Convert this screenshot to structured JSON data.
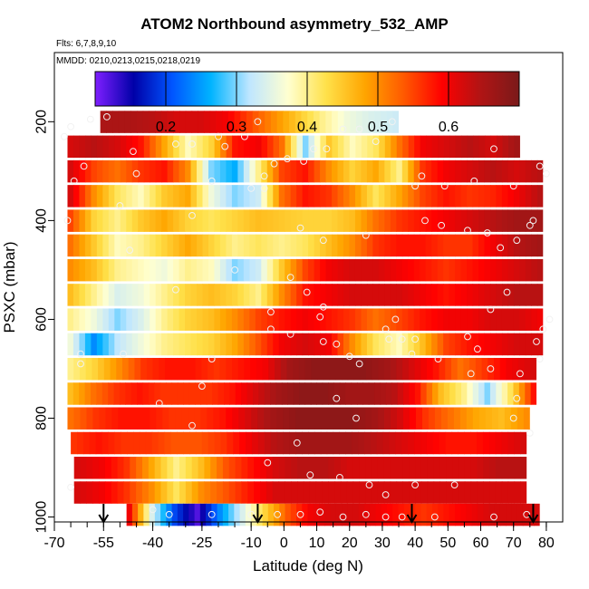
{
  "chart_data": {
    "type": "heatmap",
    "title": "ATOM2 Northbound asymmetry_532_AMP",
    "flights_label": "Flts: 6,7,8,9,10",
    "dates_label": "MMDD: 0210,0213,0215,0218,0219",
    "xlabel": "Latitude (deg N)",
    "ylabel": "PSXC (mbar)",
    "xlim": [
      -70,
      85
    ],
    "ylim": [
      1010,
      60
    ],
    "y_reversed": true,
    "x_tick_labels": [
      "-70",
      "-55",
      "-40",
      "-25",
      "-10",
      "0",
      "10",
      "20",
      "30",
      "40",
      "50",
      "60",
      "70",
      "80"
    ],
    "y_tick_labels": [
      "200",
      "400",
      "600",
      "800",
      "1000"
    ],
    "colorbar": {
      "range": [
        0.1,
        0.7
      ],
      "tick_labels": [
        "0.2",
        "0.3",
        "0.4",
        "0.5",
        "0.6"
      ],
      "colors": [
        "#7f1fff",
        "#0000a8",
        "#0055ff",
        "#00b4ff",
        "#bfe6ff",
        "#ffffd0",
        "#ffe14a",
        "#ffa500",
        "#ff5a00",
        "#ff0000",
        "#b01414",
        "#7a1a1a"
      ]
    },
    "rows": [
      {
        "p": 200,
        "lat0": -56,
        "lat1": 35,
        "v": [
          0.65,
          0.65,
          0.64,
          0.62,
          0.62,
          0.6,
          0.55,
          0.5,
          0.45,
          0.4,
          0.36,
          0.34,
          0.33
        ]
      },
      {
        "p": 250,
        "lat0": -66,
        "lat1": 72,
        "v": [
          0.62,
          0.64,
          0.62,
          0.58,
          0.48,
          0.38,
          0.44,
          0.58,
          0.6,
          0.52,
          0.3,
          0.45,
          0.38,
          0.42,
          0.52,
          0.6,
          0.62,
          0.64,
          0.62,
          0.66
        ]
      },
      {
        "p": 300,
        "lat0": -66,
        "lat1": 79,
        "v": [
          0.62,
          0.55,
          0.52,
          0.56,
          0.58,
          0.5,
          0.3,
          0.26,
          0.4,
          0.55,
          0.58,
          0.5,
          0.44,
          0.48,
          0.4,
          0.56,
          0.6,
          0.62,
          0.64,
          0.62,
          0.64
        ]
      },
      {
        "p": 350,
        "lat0": -66,
        "lat1": 79,
        "v": [
          0.62,
          0.5,
          0.42,
          0.38,
          0.45,
          0.48,
          0.36,
          0.3,
          0.33,
          0.52,
          0.58,
          0.56,
          0.5,
          0.42,
          0.48,
          0.55,
          0.58,
          0.56,
          0.57,
          0.6,
          0.64
        ]
      },
      {
        "p": 400,
        "lat0": -66,
        "lat1": 79,
        "v": [
          0.55,
          0.44,
          0.4,
          0.45,
          0.48,
          0.44,
          0.42,
          0.44,
          0.46,
          0.45,
          0.44,
          0.44,
          0.46,
          0.52,
          0.56,
          0.58,
          0.6,
          0.62,
          0.64,
          0.66,
          0.66
        ]
      },
      {
        "p": 450,
        "lat0": -66,
        "lat1": 79,
        "v": [
          0.52,
          0.45,
          0.38,
          0.4,
          0.44,
          0.48,
          0.44,
          0.4,
          0.42,
          0.4,
          0.42,
          0.46,
          0.5,
          0.56,
          0.58,
          0.58,
          0.56,
          0.56,
          0.6,
          0.64,
          0.66
        ]
      },
      {
        "p": 500,
        "lat0": -66,
        "lat1": 79,
        "v": [
          0.5,
          0.46,
          0.4,
          0.38,
          0.36,
          0.4,
          0.38,
          0.3,
          0.33,
          0.45,
          0.55,
          0.6,
          0.62,
          0.62,
          0.6,
          0.58,
          0.56,
          0.58,
          0.6,
          0.62,
          0.64
        ]
      },
      {
        "p": 550,
        "lat0": -66,
        "lat1": 79,
        "v": [
          0.46,
          0.4,
          0.34,
          0.36,
          0.4,
          0.44,
          0.46,
          0.44,
          0.4,
          0.5,
          0.58,
          0.6,
          0.62,
          0.62,
          0.62,
          0.6,
          0.58,
          0.6,
          0.62,
          0.64,
          0.64
        ]
      },
      {
        "p": 600,
        "lat0": -66,
        "lat1": 79,
        "v": [
          0.4,
          0.36,
          0.3,
          0.34,
          0.4,
          0.44,
          0.46,
          0.5,
          0.55,
          0.58,
          0.6,
          0.58,
          0.56,
          0.52,
          0.55,
          0.58,
          0.6,
          0.6,
          0.62,
          0.62,
          0.6
        ]
      },
      {
        "p": 650,
        "lat0": -66,
        "lat1": 79,
        "v": [
          0.36,
          0.24,
          0.32,
          0.36,
          0.4,
          0.42,
          0.44,
          0.48,
          0.54,
          0.6,
          0.62,
          0.6,
          0.5,
          0.42,
          0.38,
          0.46,
          0.55,
          0.58,
          0.6,
          0.62,
          0.62
        ]
      },
      {
        "p": 700,
        "lat0": -66,
        "lat1": 77,
        "v": [
          0.4,
          0.44,
          0.5,
          0.56,
          0.58,
          0.58,
          0.56,
          0.58,
          0.6,
          0.66,
          0.68,
          0.68,
          0.68,
          0.66,
          0.62,
          0.58,
          0.52,
          0.56,
          0.6,
          0.62
        ]
      },
      {
        "p": 750,
        "lat0": -66,
        "lat1": 77,
        "v": [
          0.46,
          0.52,
          0.56,
          0.58,
          0.56,
          0.56,
          0.56,
          0.58,
          0.62,
          0.66,
          0.68,
          0.68,
          0.66,
          0.66,
          0.64,
          0.58,
          0.46,
          0.4,
          0.3,
          0.42,
          0.58
        ]
      },
      {
        "p": 800,
        "lat0": -66,
        "lat1": 75,
        "v": [
          0.52,
          0.56,
          0.58,
          0.58,
          0.56,
          0.56,
          0.58,
          0.62,
          0.66,
          0.68,
          0.68,
          0.68,
          0.66,
          0.62,
          0.56,
          0.52,
          0.48,
          0.46,
          0.5
        ]
      },
      {
        "p": 850,
        "lat0": -65,
        "lat1": 74,
        "v": [
          0.56,
          0.58,
          0.56,
          0.56,
          0.54,
          0.54,
          0.56,
          0.6,
          0.64,
          0.66,
          0.66,
          0.66,
          0.64,
          0.62,
          0.6,
          0.58,
          0.58,
          0.6,
          0.62
        ]
      },
      {
        "p": 900,
        "lat0": -64,
        "lat1": 74,
        "v": [
          0.62,
          0.6,
          0.56,
          0.48,
          0.4,
          0.46,
          0.54,
          0.58,
          0.62,
          0.64,
          0.64,
          0.62,
          0.62,
          0.62,
          0.62,
          0.62,
          0.62,
          0.64,
          0.64
        ]
      },
      {
        "p": 950,
        "lat0": -64,
        "lat1": 74,
        "v": [
          0.62,
          0.6,
          0.56,
          0.5,
          0.42,
          0.5,
          0.54,
          0.58,
          0.62,
          0.62,
          0.62,
          0.62,
          0.62,
          0.62,
          0.62,
          0.62,
          0.62,
          0.62,
          0.62
        ]
      },
      {
        "p": 995,
        "lat0": -48,
        "lat1": 78,
        "v": [
          0.6,
          0.34,
          0.2,
          0.12,
          0.24,
          0.34,
          0.44,
          0.54,
          0.6,
          0.62,
          0.62,
          0.6,
          0.58,
          0.56,
          0.58,
          0.6,
          0.62,
          0.62,
          0.62
        ]
      }
    ],
    "points": [
      [
        -59,
        195
      ],
      [
        -54,
        190
      ],
      [
        -65,
        210
      ],
      [
        -67,
        230
      ],
      [
        -61,
        290
      ],
      [
        -64,
        320
      ],
      [
        -66,
        400
      ],
      [
        -50,
        370
      ],
      [
        -45,
        305
      ],
      [
        -46,
        260
      ],
      [
        -47,
        460
      ],
      [
        -49,
        670
      ],
      [
        -62,
        670
      ],
      [
        -62,
        690
      ],
      [
        -65,
        940
      ],
      [
        -33,
        245
      ],
      [
        -28,
        245
      ],
      [
        -20,
        230
      ],
      [
        -12,
        230
      ],
      [
        -18,
        250
      ],
      [
        -8,
        200
      ],
      [
        -6,
        310
      ],
      [
        -22,
        320
      ],
      [
        -28,
        390
      ],
      [
        -15,
        500
      ],
      [
        -33,
        540
      ],
      [
        -22,
        680
      ],
      [
        -25,
        735
      ],
      [
        -38,
        770
      ],
      [
        -28,
        815
      ],
      [
        -6,
        335
      ],
      [
        -3,
        285
      ],
      [
        -10,
        335
      ],
      [
        1,
        275
      ],
      [
        6,
        280
      ],
      [
        9,
        255
      ],
      [
        13,
        255
      ],
      [
        18,
        215
      ],
      [
        23,
        215
      ],
      [
        33,
        200
      ],
      [
        28,
        240
      ],
      [
        5,
        415
      ],
      [
        12,
        440
      ],
      [
        2,
        515
      ],
      [
        -4,
        585
      ],
      [
        7,
        545
      ],
      [
        12,
        575
      ],
      [
        11,
        595
      ],
      [
        -4,
        620
      ],
      [
        2,
        630
      ],
      [
        12,
        645
      ],
      [
        16,
        650
      ],
      [
        20,
        675
      ],
      [
        31,
        620
      ],
      [
        34,
        600
      ],
      [
        32,
        640
      ],
      [
        36,
        640
      ],
      [
        40,
        640
      ],
      [
        39,
        670
      ],
      [
        47,
        680
      ],
      [
        23,
        690
      ],
      [
        16,
        760
      ],
      [
        22,
        800
      ],
      [
        4,
        850
      ],
      [
        -5,
        890
      ],
      [
        8,
        915
      ],
      [
        17,
        920
      ],
      [
        26,
        935
      ],
      [
        31,
        955
      ],
      [
        40,
        935
      ],
      [
        52,
        935
      ],
      [
        40,
        330
      ],
      [
        42,
        310
      ],
      [
        49,
        330
      ],
      [
        58,
        320
      ],
      [
        56,
        420
      ],
      [
        48,
        410
      ],
      [
        62,
        425
      ],
      [
        64,
        255
      ],
      [
        70,
        330
      ],
      [
        66,
        455
      ],
      [
        71,
        440
      ],
      [
        75,
        410
      ],
      [
        76,
        400
      ],
      [
        80,
        305
      ],
      [
        78,
        290
      ],
      [
        68,
        545
      ],
      [
        63,
        580
      ],
      [
        56,
        635
      ],
      [
        59,
        660
      ],
      [
        77,
        645
      ],
      [
        78,
        680
      ],
      [
        72,
        710
      ],
      [
        71,
        760
      ],
      [
        63,
        700
      ],
      [
        57,
        710
      ],
      [
        70,
        800
      ],
      [
        75,
        830
      ],
      [
        79,
        620
      ],
      [
        81,
        600
      ],
      [
        -40,
        985
      ],
      [
        -35,
        995
      ],
      [
        -22,
        995
      ],
      [
        -10,
        995
      ],
      [
        -2,
        995
      ],
      [
        5,
        995
      ],
      [
        11,
        990
      ],
      [
        18,
        1000
      ],
      [
        25,
        995
      ],
      [
        31,
        1000
      ],
      [
        36,
        1000
      ],
      [
        46,
        1000
      ],
      [
        64,
        1000
      ],
      [
        74,
        995
      ],
      [
        43,
        400
      ],
      [
        25,
        430
      ]
    ],
    "arrows": [
      -55,
      -8,
      39,
      76
    ]
  }
}
